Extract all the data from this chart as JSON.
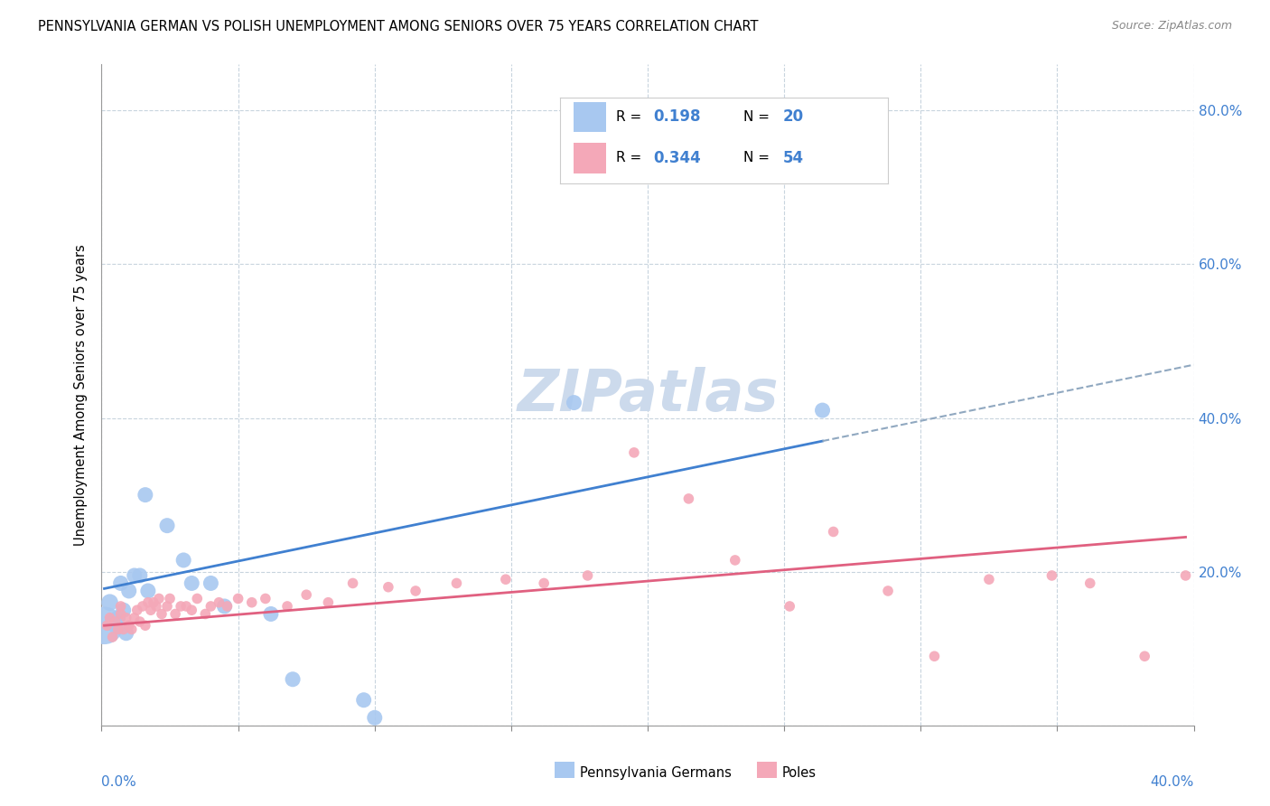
{
  "title": "PENNSYLVANIA GERMAN VS POLISH UNEMPLOYMENT AMONG SENIORS OVER 75 YEARS CORRELATION CHART",
  "source": "Source: ZipAtlas.com",
  "ylabel": "Unemployment Among Seniors over 75 years",
  "xlim": [
    0.0,
    0.4
  ],
  "ylim": [
    0.0,
    0.86
  ],
  "series1_color": "#a8c8f0",
  "series2_color": "#f4a8b8",
  "trendline1_color": "#4080d0",
  "trendline2_color": "#e06080",
  "dashed_line_color": "#90a8c0",
  "watermark_color": "#ccdaec",
  "pa_german_x": [
    0.001,
    0.003,
    0.004,
    0.005,
    0.006,
    0.007,
    0.008,
    0.009,
    0.01,
    0.012,
    0.014,
    0.016,
    0.017,
    0.024,
    0.03,
    0.033,
    0.04,
    0.045,
    0.062,
    0.07,
    0.096,
    0.1,
    0.173,
    0.264
  ],
  "pa_german_y": [
    0.13,
    0.16,
    0.135,
    0.13,
    0.14,
    0.185,
    0.15,
    0.12,
    0.175,
    0.195,
    0.195,
    0.3,
    0.175,
    0.26,
    0.215,
    0.185,
    0.185,
    0.155,
    0.145,
    0.06,
    0.033,
    0.01,
    0.42,
    0.41
  ],
  "pa_german_size": [
    900,
    180,
    150,
    150,
    150,
    150,
    150,
    150,
    150,
    150,
    150,
    150,
    150,
    150,
    150,
    150,
    150,
    150,
    150,
    150,
    150,
    150,
    150,
    150
  ],
  "poles_x": [
    0.002,
    0.003,
    0.004,
    0.005,
    0.006,
    0.007,
    0.007,
    0.008,
    0.009,
    0.01,
    0.011,
    0.012,
    0.013,
    0.014,
    0.015,
    0.016,
    0.017,
    0.018,
    0.019,
    0.02,
    0.021,
    0.022,
    0.024,
    0.025,
    0.027,
    0.029,
    0.031,
    0.033,
    0.035,
    0.038,
    0.04,
    0.043,
    0.046,
    0.05,
    0.055,
    0.06,
    0.068,
    0.075,
    0.083,
    0.092,
    0.105,
    0.115,
    0.13,
    0.148,
    0.162,
    0.178,
    0.195,
    0.215,
    0.232,
    0.252,
    0.268,
    0.288,
    0.305,
    0.325,
    0.348,
    0.362,
    0.382,
    0.397
  ],
  "poles_y": [
    0.13,
    0.14,
    0.115,
    0.135,
    0.125,
    0.145,
    0.155,
    0.125,
    0.14,
    0.13,
    0.125,
    0.14,
    0.15,
    0.135,
    0.155,
    0.13,
    0.16,
    0.15,
    0.16,
    0.155,
    0.165,
    0.145,
    0.155,
    0.165,
    0.145,
    0.155,
    0.155,
    0.15,
    0.165,
    0.145,
    0.155,
    0.16,
    0.155,
    0.165,
    0.16,
    0.165,
    0.155,
    0.17,
    0.16,
    0.185,
    0.18,
    0.175,
    0.185,
    0.19,
    0.185,
    0.195,
    0.355,
    0.295,
    0.215,
    0.155,
    0.252,
    0.175,
    0.09,
    0.19,
    0.195,
    0.185,
    0.09,
    0.195
  ],
  "poles_size": 70,
  "trendline_pa_start_x": 0.001,
  "trendline_pa_end_x": 0.264,
  "trendline_dashed_end_x": 0.4,
  "trendline_pa_start_y": 0.178,
  "trendline_pa_end_y": 0.37,
  "trendline_po_start_x": 0.001,
  "trendline_po_end_x": 0.397,
  "trendline_po_start_y": 0.13,
  "trendline_po_end_y": 0.245
}
